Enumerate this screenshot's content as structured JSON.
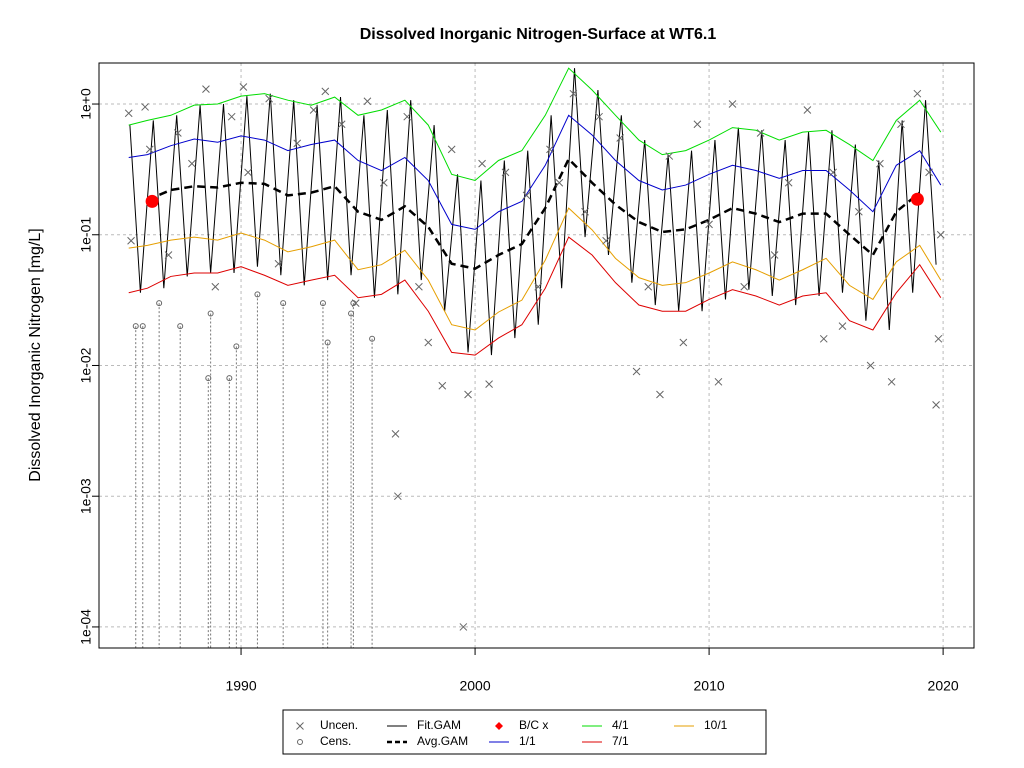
{
  "chart_data": {
    "type": "line",
    "title": "Dissolved Inorganic Nitrogen-Surface at WT6.1",
    "y_label": "Dissolved Inorganic Nitrogen [mg/L]",
    "log_scale_y": true,
    "grid": true,
    "xlim": [
      1983.93,
      2021.32
    ],
    "xticks": [
      1990,
      2000,
      2010,
      2020
    ],
    "ylim": [
      6.9e-05,
      2.06
    ],
    "yticks": [
      {
        "value": 0.0001,
        "label": "1e-04"
      },
      {
        "value": 0.001,
        "label": "1e-03"
      },
      {
        "value": 0.01,
        "label": "1e-02"
      },
      {
        "value": 0.1,
        "label": "1e-01"
      },
      {
        "value": 1,
        "label": "1e+0"
      }
    ],
    "series": [
      {
        "name": "Uncen.",
        "kind": "points",
        "marker": "x",
        "color": "#666666",
        "x": [
          1985.2,
          1985.3,
          1985.9,
          1986.1,
          1986.9,
          1987.3,
          1987.9,
          1988.5,
          1988.9,
          1989.6,
          1990.1,
          1990.3,
          1991.2,
          1991.6,
          1992.4,
          1993.1,
          1993.6,
          1994.3,
          1994.9,
          1995.4,
          1996.1,
          1996.6,
          1996.7,
          1997.1,
          1997.6,
          1998.0,
          1998.6,
          1999.0,
          1999.5,
          1999.7,
          2000.3,
          2000.6,
          2001.3,
          2002.2,
          2002.7,
          2003.2,
          2003.6,
          2004.2,
          2004.7,
          2005.3,
          2005.6,
          2006.2,
          2006.9,
          2007.4,
          2007.9,
          2008.3,
          2008.9,
          2009.5,
          2010.0,
          2010.4,
          2011.0,
          2011.5,
          2012.2,
          2012.8,
          2013.4,
          2014.2,
          2014.9,
          2015.3,
          2015.7,
          2016.4,
          2016.9,
          2017.3,
          2017.8,
          2018.2,
          2018.9,
          2019.4,
          2019.7,
          2019.8,
          2019.9
        ],
        "values": [
          0.85,
          0.09,
          0.95,
          0.45,
          0.07,
          0.6,
          0.35,
          1.3,
          0.04,
          0.8,
          1.35,
          0.3,
          1.1,
          0.06,
          0.5,
          0.9,
          1.25,
          0.7,
          0.03,
          1.05,
          0.25,
          0.003,
          0.001,
          0.8,
          0.04,
          0.015,
          0.007,
          0.45,
          0.0001,
          0.006,
          0.35,
          0.0072,
          0.3,
          0.2,
          0.04,
          0.45,
          0.25,
          1.2,
          0.15,
          0.8,
          0.09,
          0.55,
          0.009,
          0.04,
          0.006,
          0.4,
          0.015,
          0.7,
          0.12,
          0.0075,
          1.0,
          0.04,
          0.6,
          0.07,
          0.25,
          0.9,
          0.016,
          0.3,
          0.02,
          0.15,
          0.01,
          0.35,
          0.0075,
          0.7,
          1.2,
          0.3,
          0.005,
          0.016,
          0.1
        ]
      },
      {
        "name": "Cens.",
        "kind": "points",
        "marker": "circle",
        "color": "#666666",
        "x": [
          1985.5,
          1985.8,
          1986.5,
          1987.4,
          1988.6,
          1988.7,
          1989.5,
          1989.8,
          1990.7,
          1991.8,
          1993.5,
          1993.7,
          1994.7,
          1994.8,
          1995.6
        ],
        "values": [
          0.02,
          0.02,
          0.03,
          0.02,
          0.008,
          0.025,
          0.008,
          0.014,
          0.035,
          0.03,
          0.03,
          0.015,
          0.025,
          0.03,
          0.016
        ]
      },
      {
        "name": "Fit.GAM",
        "kind": "line",
        "dash": false,
        "width": 1,
        "color": "#000000",
        "x": [
          1985.25,
          1985.7,
          1986.25,
          1986.7,
          1987.25,
          1987.7,
          1988.25,
          1988.7,
          1989.25,
          1989.7,
          1990.25,
          1990.7,
          1991.25,
          1991.7,
          1992.25,
          1992.7,
          1993.25,
          1993.7,
          1994.25,
          1994.7,
          1995.25,
          1995.7,
          1996.25,
          1996.7,
          1997.25,
          1997.7,
          1998.25,
          1998.7,
          1999.25,
          1999.7,
          2000.25,
          2000.7,
          2001.25,
          2001.7,
          2002.25,
          2002.7,
          2003.25,
          2003.7,
          2004.25,
          2004.7,
          2005.25,
          2005.7,
          2006.25,
          2006.7,
          2007.25,
          2007.7,
          2008.25,
          2008.7,
          2009.25,
          2009.7,
          2010.25,
          2010.7,
          2011.25,
          2011.7,
          2012.25,
          2012.7,
          2013.25,
          2013.7,
          2014.25,
          2014.7,
          2015.25,
          2015.7,
          2016.25,
          2016.7,
          2017.25,
          2017.7,
          2018.25,
          2018.7,
          2019.25,
          2019.7
        ],
        "values": [
          0.69,
          0.036,
          0.75,
          0.039,
          0.82,
          0.048,
          0.98,
          0.051,
          1.0,
          0.051,
          1.15,
          0.057,
          1.2,
          0.049,
          1.07,
          0.041,
          0.98,
          0.045,
          1.13,
          0.049,
          0.82,
          0.033,
          0.9,
          0.035,
          1.07,
          0.045,
          0.69,
          0.026,
          0.29,
          0.0126,
          0.26,
          0.012,
          0.37,
          0.0162,
          0.44,
          0.0205,
          0.82,
          0.039,
          1.88,
          0.096,
          1.28,
          0.07,
          0.82,
          0.043,
          0.53,
          0.029,
          0.41,
          0.026,
          0.44,
          0.026,
          0.53,
          0.032,
          0.66,
          0.038,
          0.63,
          0.034,
          0.53,
          0.029,
          0.61,
          0.034,
          0.63,
          0.036,
          0.49,
          0.022,
          0.37,
          0.0187,
          0.75,
          0.036,
          1.07,
          0.059
        ]
      },
      {
        "name": "Avg.GAM",
        "kind": "line",
        "dash": true,
        "width": 2.5,
        "color": "#000000",
        "x": [
          1985.2,
          1986,
          1987,
          1988,
          1989,
          1990,
          1991,
          1992,
          1993,
          1994,
          1995,
          1996,
          1997,
          1998,
          1999,
          2000,
          2001,
          2002,
          2003,
          2004,
          2005,
          2006,
          2007,
          2008,
          2009,
          2010,
          2011,
          2012,
          2013,
          2014,
          2015,
          2016,
          2017,
          2018,
          2019,
          2019.9
        ],
        "values": [
          null,
          0.185,
          0.22,
          0.235,
          0.23,
          0.25,
          0.245,
          0.2,
          0.21,
          0.235,
          0.15,
          0.13,
          0.165,
          0.115,
          0.06,
          0.055,
          0.07,
          0.085,
          0.16,
          0.38,
          0.25,
          0.17,
          0.125,
          0.105,
          0.11,
          0.13,
          0.16,
          0.145,
          0.125,
          0.145,
          0.145,
          0.1,
          0.07,
          0.15,
          0.21,
          null
        ]
      },
      {
        "name": "B/C x",
        "kind": "points",
        "marker": "diamond",
        "color": "#ff0000",
        "x": [
          1986.2,
          2018.9
        ],
        "values": [
          0.18,
          0.187
        ]
      },
      {
        "name": "1/1",
        "kind": "line",
        "dash": false,
        "width": 1,
        "color": "#0000cc",
        "x": [
          1985.2,
          1986,
          1987,
          1988,
          1989,
          1990,
          1991,
          1992,
          1993,
          1994,
          1995,
          1996,
          1997,
          1998,
          1999,
          2000,
          2001,
          2002,
          2003,
          2004,
          2005,
          2006,
          2007,
          2008,
          2009,
          2010,
          2011,
          2012,
          2013,
          2014,
          2015,
          2016,
          2017,
          2018,
          2019,
          2019.9
        ],
        "values": [
          0.39,
          0.41,
          0.48,
          0.54,
          0.51,
          0.57,
          0.53,
          0.44,
          0.49,
          0.53,
          0.37,
          0.31,
          0.39,
          0.26,
          0.12,
          0.11,
          0.15,
          0.18,
          0.34,
          0.82,
          0.58,
          0.37,
          0.26,
          0.22,
          0.24,
          0.29,
          0.34,
          0.31,
          0.27,
          0.31,
          0.31,
          0.22,
          0.15,
          0.34,
          0.44,
          0.24
        ]
      },
      {
        "name": "4/1",
        "kind": "line",
        "dash": false,
        "width": 1,
        "color": "#00dd00",
        "x": [
          1985.2,
          1986,
          1987,
          1988,
          1989,
          1990,
          1991,
          1992,
          1993,
          1994,
          1995,
          1996,
          1997,
          1998,
          1999,
          2000,
          2001,
          2002,
          2003,
          2004,
          2005,
          2006,
          2007,
          2008,
          2009,
          2010,
          2011,
          2012,
          2013,
          2014,
          2015,
          2016,
          2017,
          2018,
          2019,
          2019.9
        ],
        "values": [
          0.69,
          0.75,
          0.82,
          0.98,
          1.0,
          1.15,
          1.2,
          1.07,
          0.98,
          1.13,
          0.82,
          0.9,
          1.07,
          0.69,
          0.29,
          0.26,
          0.37,
          0.44,
          0.82,
          1.88,
          1.28,
          0.82,
          0.53,
          0.41,
          0.44,
          0.53,
          0.66,
          0.63,
          0.53,
          0.61,
          0.63,
          0.49,
          0.37,
          0.75,
          1.07,
          0.61
        ]
      },
      {
        "name": "7/1",
        "kind": "line",
        "dash": false,
        "width": 1,
        "color": "#dd0000",
        "x": [
          1985.2,
          1986,
          1987,
          1988,
          1989,
          1990,
          1991,
          1992,
          1993,
          1994,
          1995,
          1996,
          1997,
          1998,
          1999,
          2000,
          2001,
          2002,
          2003,
          2004,
          2005,
          2006,
          2007,
          2008,
          2009,
          2010,
          2011,
          2012,
          2013,
          2014,
          2015,
          2016,
          2017,
          2018,
          2019,
          2019.9
        ],
        "values": [
          0.036,
          0.039,
          0.048,
          0.051,
          0.051,
          0.057,
          0.049,
          0.041,
          0.045,
          0.049,
          0.033,
          0.035,
          0.045,
          0.026,
          0.0126,
          0.012,
          0.0162,
          0.0205,
          0.039,
          0.096,
          0.07,
          0.043,
          0.029,
          0.026,
          0.026,
          0.032,
          0.038,
          0.034,
          0.029,
          0.034,
          0.036,
          0.022,
          0.0187,
          0.036,
          0.059,
          0.033
        ]
      },
      {
        "name": "10/1",
        "kind": "line",
        "dash": false,
        "width": 1,
        "color": "#e69f00",
        "x": [
          1985.2,
          1986,
          1987,
          1988,
          1989,
          1990,
          1991,
          1992,
          1993,
          1994,
          1995,
          1996,
          1997,
          1998,
          1999,
          2000,
          2001,
          2002,
          2003,
          2004,
          2005,
          2006,
          2007,
          2008,
          2009,
          2010,
          2011,
          2012,
          2013,
          2014,
          2015,
          2016,
          2017,
          2018,
          2019,
          2019.9
        ],
        "values": [
          0.079,
          0.083,
          0.091,
          0.096,
          0.091,
          0.103,
          0.091,
          0.074,
          0.081,
          0.091,
          0.054,
          0.059,
          0.076,
          0.045,
          0.0205,
          0.0187,
          0.0256,
          0.0316,
          0.064,
          0.16,
          0.109,
          0.066,
          0.047,
          0.041,
          0.043,
          0.051,
          0.062,
          0.054,
          0.045,
          0.054,
          0.066,
          0.041,
          0.032,
          0.062,
          0.083,
          0.045
        ]
      }
    ]
  }
}
